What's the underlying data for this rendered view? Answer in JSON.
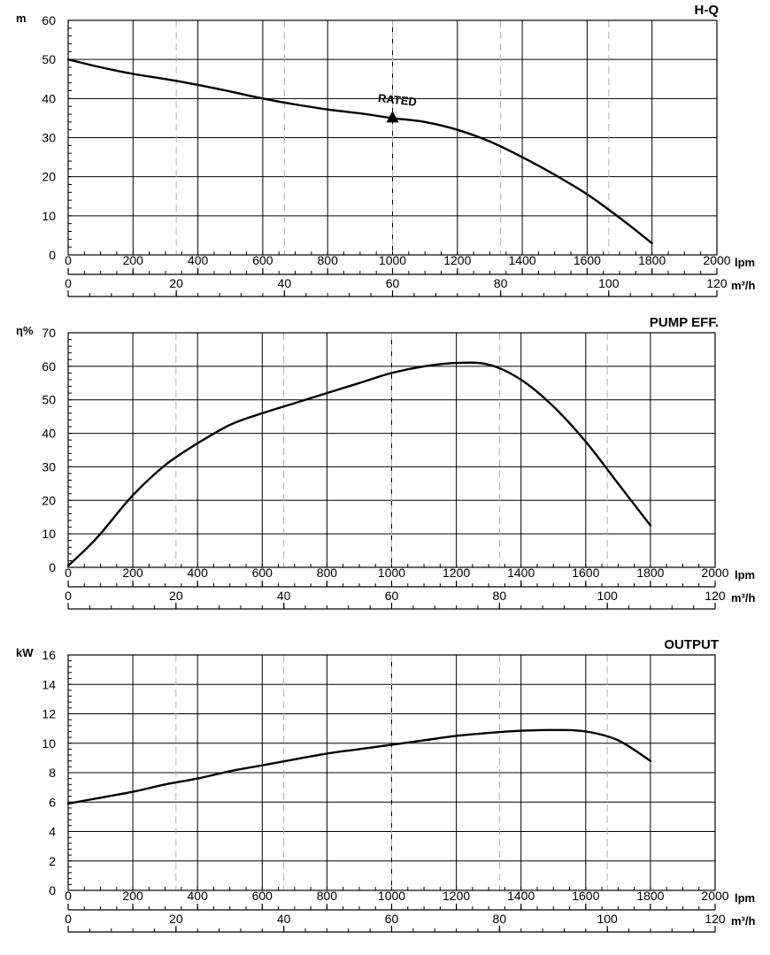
{
  "chart_data": [
    {
      "type": "line",
      "title": "H-Q",
      "ylabel": "m",
      "x_primary_label": "lpm",
      "x_secondary_label": "m³/h",
      "ylim": [
        0,
        60
      ],
      "yticks": [
        0,
        10,
        20,
        30,
        40,
        50,
        60
      ],
      "xlim": [
        0,
        2000
      ],
      "xticks": [
        0,
        200,
        400,
        600,
        800,
        1000,
        1200,
        1400,
        1600,
        1800,
        2000
      ],
      "x2lim": [
        0,
        120
      ],
      "x2ticks": [
        0,
        20,
        40,
        60,
        80,
        100,
        120
      ],
      "grid": true,
      "series": [
        {
          "x": [
            0,
            100,
            200,
            300,
            400,
            500,
            600,
            700,
            800,
            900,
            1000,
            1100,
            1200,
            1300,
            1400,
            1500,
            1600,
            1700,
            1800
          ],
          "y": [
            50,
            48,
            46.3,
            45,
            43.5,
            41.8,
            40,
            38.5,
            37.2,
            36.2,
            35,
            34,
            32,
            29,
            25,
            20.5,
            15.5,
            9.5,
            3
          ]
        }
      ],
      "annotations": [
        {
          "text": "RATED",
          "x": 1000,
          "y": 35,
          "marker": "triangle"
        }
      ]
    },
    {
      "type": "line",
      "title": "PUMP EFF.",
      "ylabel": "η%",
      "x_primary_label": "lpm",
      "x_secondary_label": "m³/h",
      "ylim": [
        0,
        70
      ],
      "yticks": [
        0,
        10,
        20,
        30,
        40,
        50,
        60,
        70
      ],
      "xlim": [
        0,
        2000
      ],
      "xticks": [
        0,
        200,
        400,
        600,
        800,
        1000,
        1200,
        1400,
        1600,
        1800,
        2000
      ],
      "x2lim": [
        0,
        120
      ],
      "x2ticks": [
        0,
        20,
        40,
        60,
        80,
        100,
        120
      ],
      "grid": true,
      "series": [
        {
          "x": [
            0,
            50,
            100,
            200,
            300,
            400,
            500,
            600,
            700,
            800,
            900,
            1000,
            1100,
            1200,
            1300,
            1400,
            1500,
            1600,
            1700,
            1800
          ],
          "y": [
            0.5,
            5,
            10,
            21.5,
            30.5,
            37,
            42.5,
            46,
            49,
            52,
            55,
            58,
            60,
            61,
            60.5,
            56,
            48,
            37.5,
            25,
            12.5
          ]
        }
      ]
    },
    {
      "type": "line",
      "title": "OUTPUT",
      "ylabel": "kW",
      "x_primary_label": "lpm",
      "x_secondary_label": "m³/h",
      "ylim": [
        0,
        16
      ],
      "yticks": [
        0,
        2,
        4,
        6,
        8,
        10,
        12,
        14,
        16
      ],
      "xlim": [
        0,
        2000
      ],
      "xticks": [
        0,
        200,
        400,
        600,
        800,
        1000,
        1200,
        1400,
        1600,
        1800,
        2000
      ],
      "x2lim": [
        0,
        120
      ],
      "x2ticks": [
        0,
        20,
        40,
        60,
        80,
        100,
        120
      ],
      "grid": true,
      "series": [
        {
          "x": [
            0,
            100,
            200,
            300,
            400,
            500,
            600,
            700,
            800,
            900,
            1000,
            1100,
            1200,
            1300,
            1400,
            1500,
            1600,
            1700,
            1800
          ],
          "y": [
            5.9,
            6.3,
            6.7,
            7.2,
            7.6,
            8.1,
            8.5,
            8.9,
            9.3,
            9.6,
            9.9,
            10.2,
            10.5,
            10.7,
            10.85,
            10.9,
            10.8,
            10.2,
            8.8
          ]
        }
      ]
    }
  ]
}
